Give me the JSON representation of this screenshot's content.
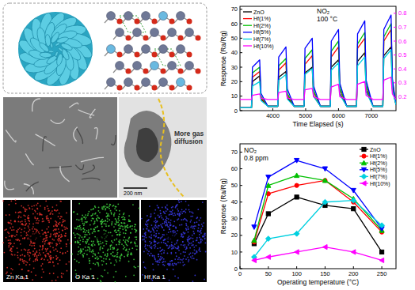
{
  "chart_data": [
    {
      "type": "line",
      "x": [
        3000,
        3350,
        3380,
        3600,
        3640,
        3850,
        4150,
        4180,
        4400,
        4440,
        4650,
        4950,
        4980,
        5200,
        5240,
        5450,
        5750,
        5780,
        6000,
        6040,
        6250,
        6550,
        6580,
        6800,
        6840,
        7050,
        7350,
        7380,
        7600,
        7640,
        7750
      ],
      "series": [
        {
          "name": "ZnO",
          "color": "#000000",
          "values": [
            2,
            2,
            20,
            24,
            8,
            3,
            3,
            23,
            27,
            9,
            3,
            3,
            26,
            30,
            10,
            3,
            3,
            30,
            35,
            12,
            3,
            3,
            34,
            40,
            14,
            3,
            3,
            38,
            44,
            15,
            4
          ]
        },
        {
          "name": "Hf(1%)",
          "color": "#ff0000",
          "values": [
            2,
            2,
            23,
            27,
            9,
            3,
            3,
            28,
            33,
            11,
            3,
            3,
            32,
            38,
            13,
            3,
            3,
            37,
            44,
            15,
            3,
            3,
            43,
            50,
            17,
            3,
            3,
            48,
            56,
            19,
            4
          ]
        },
        {
          "name": "Hf(2%)",
          "color": "#00c000",
          "values": [
            2,
            2,
            26,
            30,
            10,
            3,
            3,
            31,
            36,
            12,
            3,
            3,
            36,
            42,
            14,
            3,
            3,
            41,
            48,
            16,
            3,
            3,
            46,
            54,
            18,
            3,
            3,
            51,
            60,
            20,
            4
          ]
        },
        {
          "name": "Hf(5%)",
          "color": "#0000ff",
          "values": [
            2,
            2,
            30,
            35,
            12,
            3,
            3,
            37,
            44,
            15,
            3,
            3,
            43,
            50,
            17,
            3,
            3,
            48,
            56,
            19,
            3,
            3,
            53,
            62,
            21,
            3,
            3,
            56,
            66,
            22,
            4
          ]
        },
        {
          "name": "Hf(7%)",
          "color": "#00d0e0",
          "values": [
            2,
            2,
            17,
            20,
            7,
            3,
            3,
            21,
            25,
            8,
            3,
            3,
            25,
            29,
            10,
            3,
            3,
            28,
            33,
            11,
            3,
            3,
            31,
            37,
            13,
            3,
            3,
            36,
            42,
            14,
            4
          ]
        },
        {
          "name": "Hf(10%)",
          "color": "#ff00ff",
          "axis": "y2",
          "values": [
            0.18,
            0.18,
            0.21,
            0.22,
            0.19,
            0.18,
            0.18,
            0.23,
            0.24,
            0.19,
            0.18,
            0.18,
            0.25,
            0.26,
            0.2,
            0.18,
            0.18,
            0.27,
            0.29,
            0.2,
            0.18,
            0.18,
            0.29,
            0.31,
            0.21,
            0.18,
            0.18,
            0.32,
            0.34,
            0.22,
            0.18
          ]
        }
      ],
      "xlim": [
        3000,
        7750
      ],
      "xticks": [
        4000,
        5000,
        6000,
        7000
      ],
      "ylim": [
        0,
        72
      ],
      "yticks": [
        0,
        10,
        20,
        30,
        40,
        50,
        60,
        70
      ],
      "y2lim": [
        0.1,
        0.85
      ],
      "y2ticks": [
        0.2,
        0.3,
        0.4,
        0.5,
        0.6,
        0.7,
        0.8
      ],
      "x_label": "Time Elapsed (s)",
      "y_label": "Response (Ra/Rg)",
      "annotations": [
        "NO₂",
        "100 °C"
      ],
      "legend": "upper left",
      "grid": false
    },
    {
      "type": "line",
      "x": [
        25,
        50,
        100,
        150,
        200,
        250
      ],
      "series": [
        {
          "name": "ZnO",
          "color": "#000000",
          "marker": "square",
          "values": [
            15,
            33,
            43,
            38,
            36,
            10
          ]
        },
        {
          "name": "Hf(1%)",
          "color": "#ff0000",
          "marker": "circle",
          "values": [
            16,
            45,
            50,
            53,
            40,
            22
          ]
        },
        {
          "name": "Hf(2%)",
          "color": "#00c000",
          "marker": "triangle-up",
          "values": [
            17,
            50,
            56,
            53,
            42,
            23
          ]
        },
        {
          "name": "Hf(5%)",
          "color": "#0000ff",
          "marker": "triangle-down",
          "values": [
            25,
            55,
            65,
            60,
            47,
            24
          ]
        },
        {
          "name": "Hf(7%)",
          "color": "#00d0e0",
          "marker": "diamond",
          "values": [
            7,
            18,
            21,
            40,
            41,
            26
          ]
        },
        {
          "name": "Hf(10%)",
          "color": "#ff00ff",
          "marker": "triangle-left",
          "values": [
            5,
            7,
            10,
            13,
            10,
            5
          ]
        }
      ],
      "xlim": [
        0,
        275
      ],
      "xticks": [
        0,
        50,
        100,
        150,
        200,
        250
      ],
      "ylim": [
        0,
        75
      ],
      "yticks": [
        0,
        10,
        20,
        30,
        40,
        50,
        60,
        70
      ],
      "x_label": "Operating temperature (°C)",
      "y_label": "Response (Ra/Rg)",
      "annotations": [
        "NO₂",
        "0.8 ppm"
      ],
      "legend": "upper right",
      "grid": false
    }
  ],
  "figure": {
    "tem_annotation": [
      "More gas",
      "diffusion"
    ],
    "scale_bar": "200 nm",
    "eds_maps": [
      {
        "label": "Zn Ka 1",
        "color": "#e0302a"
      },
      {
        "label": "O Ka 1",
        "color": "#3fd23f"
      },
      {
        "label": "Hf Ka 1",
        "color": "#3a3ae8"
      }
    ]
  }
}
